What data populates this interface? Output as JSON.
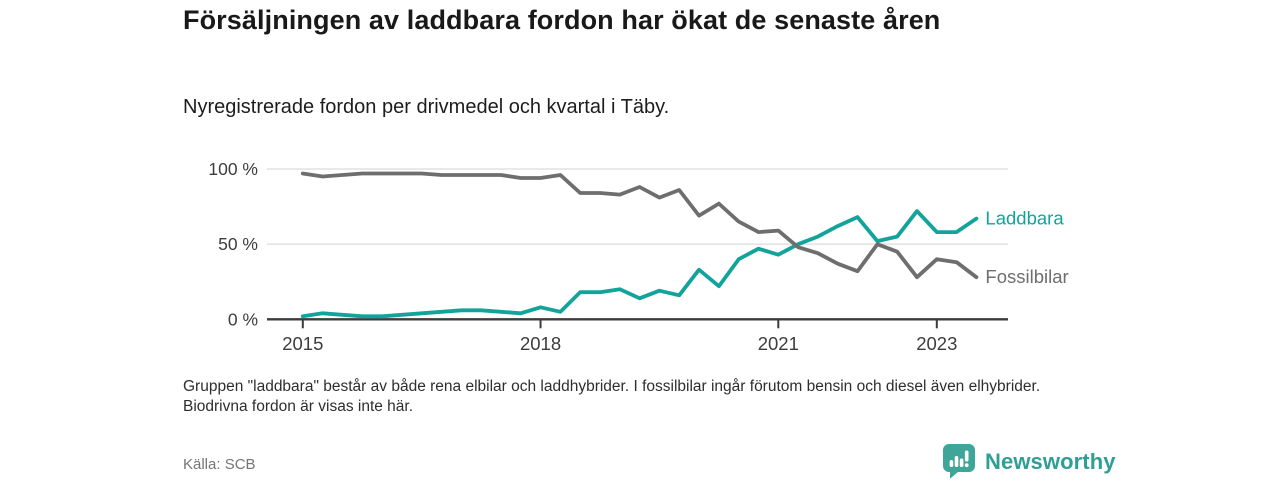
{
  "header": {
    "title": "Försäljningen av laddbara fordon har ökat de senaste åren",
    "subtitle": "Nyregistrerade fordon per drivmedel och kvartal i Täby."
  },
  "chart_data": {
    "type": "line",
    "unit": "%",
    "frequency": "quarterly",
    "ylim": [
      0,
      100
    ],
    "grid": "horizontal",
    "legend_position": "line-end-labels",
    "yticks": [
      {
        "value": 100,
        "label": "100 %"
      },
      {
        "value": 50,
        "label": "50 %"
      },
      {
        "value": 0,
        "label": "0 %"
      }
    ],
    "xticks": [
      {
        "label": "2015",
        "quarter_index": 0
      },
      {
        "label": "2018",
        "quarter_index": 12
      },
      {
        "label": "2021",
        "quarter_index": 24
      },
      {
        "label": "2023",
        "quarter_index": 32
      }
    ],
    "quarters": [
      "2015 Q1",
      "2015 Q2",
      "2015 Q3",
      "2015 Q4",
      "2016 Q1",
      "2016 Q2",
      "2016 Q3",
      "2016 Q4",
      "2017 Q1",
      "2017 Q2",
      "2017 Q3",
      "2017 Q4",
      "2018 Q1",
      "2018 Q2",
      "2018 Q3",
      "2018 Q4",
      "2019 Q1",
      "2019 Q2",
      "2019 Q3",
      "2019 Q4",
      "2020 Q1",
      "2020 Q2",
      "2020 Q3",
      "2020 Q4",
      "2021 Q1",
      "2021 Q2",
      "2021 Q3",
      "2021 Q4",
      "2022 Q1",
      "2022 Q2",
      "2022 Q3",
      "2022 Q4",
      "2023 Q1",
      "2023 Q2",
      "2023 Q3"
    ],
    "series": [
      {
        "name": "Laddbara",
        "color": "#12a39b",
        "values": [
          2,
          4,
          3,
          2,
          2,
          3,
          4,
          5,
          6,
          6,
          5,
          4,
          8,
          5,
          18,
          18,
          20,
          14,
          19,
          16,
          33,
          22,
          40,
          47,
          43,
          50,
          55,
          62,
          68,
          52,
          55,
          72,
          58,
          58,
          67
        ]
      },
      {
        "name": "Fossilbilar",
        "color": "#6e6e6e",
        "values": [
          97,
          95,
          96,
          97,
          97,
          97,
          97,
          96,
          96,
          96,
          96,
          94,
          94,
          96,
          84,
          84,
          83,
          88,
          81,
          86,
          69,
          77,
          65,
          58,
          59,
          48,
          44,
          37,
          32,
          50,
          45,
          28,
          40,
          38,
          28
        ]
      }
    ]
  },
  "footnote": "Gruppen \"laddbara\" består av både rena elbilar och laddhybrider. I fossilbilar ingår förutom bensin och diesel även elhybrider. Biodrivna fordon är visas inte här.",
  "source": "Källa: SCB",
  "branding": {
    "logo_text": "Newsworthy",
    "logo_icon": "bar-chart-speech-bubble-icon",
    "brand_color": "#2f9e95"
  },
  "colors": {
    "laddbara_line": "#12a39b",
    "fossilbilar_line": "#6e6e6e",
    "gridline": "#dcdcdc",
    "axis_line": "#3c3c3c",
    "axis_text": "#3d3d3d",
    "title_text": "#191919",
    "footnote_text": "#2e2e2e",
    "source_text": "#757575"
  }
}
